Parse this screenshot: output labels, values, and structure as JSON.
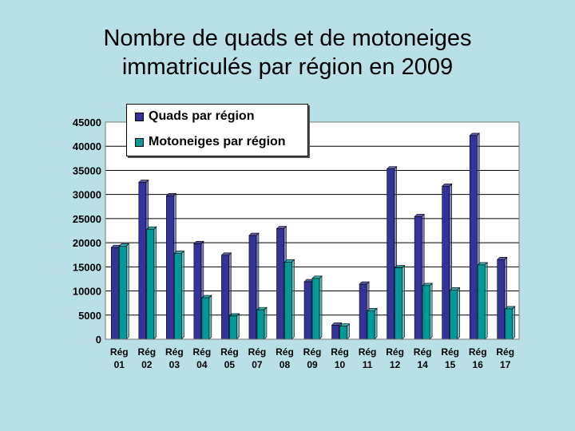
{
  "colors": {
    "quads": "#333399",
    "motoneiges": "#009999",
    "background": "#b8e0e6"
  },
  "chart_data": {
    "type": "bar",
    "title": [
      "Nombre de quads et de motoneiges",
      "immatriculés par région en 2009"
    ],
    "categories": [
      [
        "Rég",
        "01"
      ],
      [
        "Rég",
        "02"
      ],
      [
        "Rég",
        "03"
      ],
      [
        "Rég",
        "04"
      ],
      [
        "Rég",
        "05"
      ],
      [
        "Rég",
        "07"
      ],
      [
        "Rég",
        "08"
      ],
      [
        "Rég",
        "09"
      ],
      [
        "Rég",
        "10"
      ],
      [
        "Rég",
        "11"
      ],
      [
        "Rég",
        "12"
      ],
      [
        "Rég",
        "14"
      ],
      [
        "Rég",
        "15"
      ],
      [
        "Rég",
        "16"
      ],
      [
        "Rég",
        "17"
      ]
    ],
    "series": [
      {
        "name": "Quads par région",
        "values": [
          19000,
          32500,
          29700,
          19800,
          17400,
          21500,
          22900,
          11900,
          2900,
          11400,
          35300,
          25400,
          31700,
          42200,
          16500
        ]
      },
      {
        "name": "Motoneiges par région",
        "values": [
          19300,
          22800,
          17800,
          8600,
          4800,
          6100,
          16000,
          12600,
          2700,
          5900,
          14800,
          11100,
          10200,
          15400,
          6300
        ]
      }
    ],
    "ylim": [
      0,
      45000
    ],
    "yticks": [
      "0",
      "5000",
      "10000",
      "15000",
      "20000",
      "25000",
      "30000",
      "35000",
      "40000",
      "45000"
    ],
    "grid": true,
    "legend": "top-left"
  }
}
